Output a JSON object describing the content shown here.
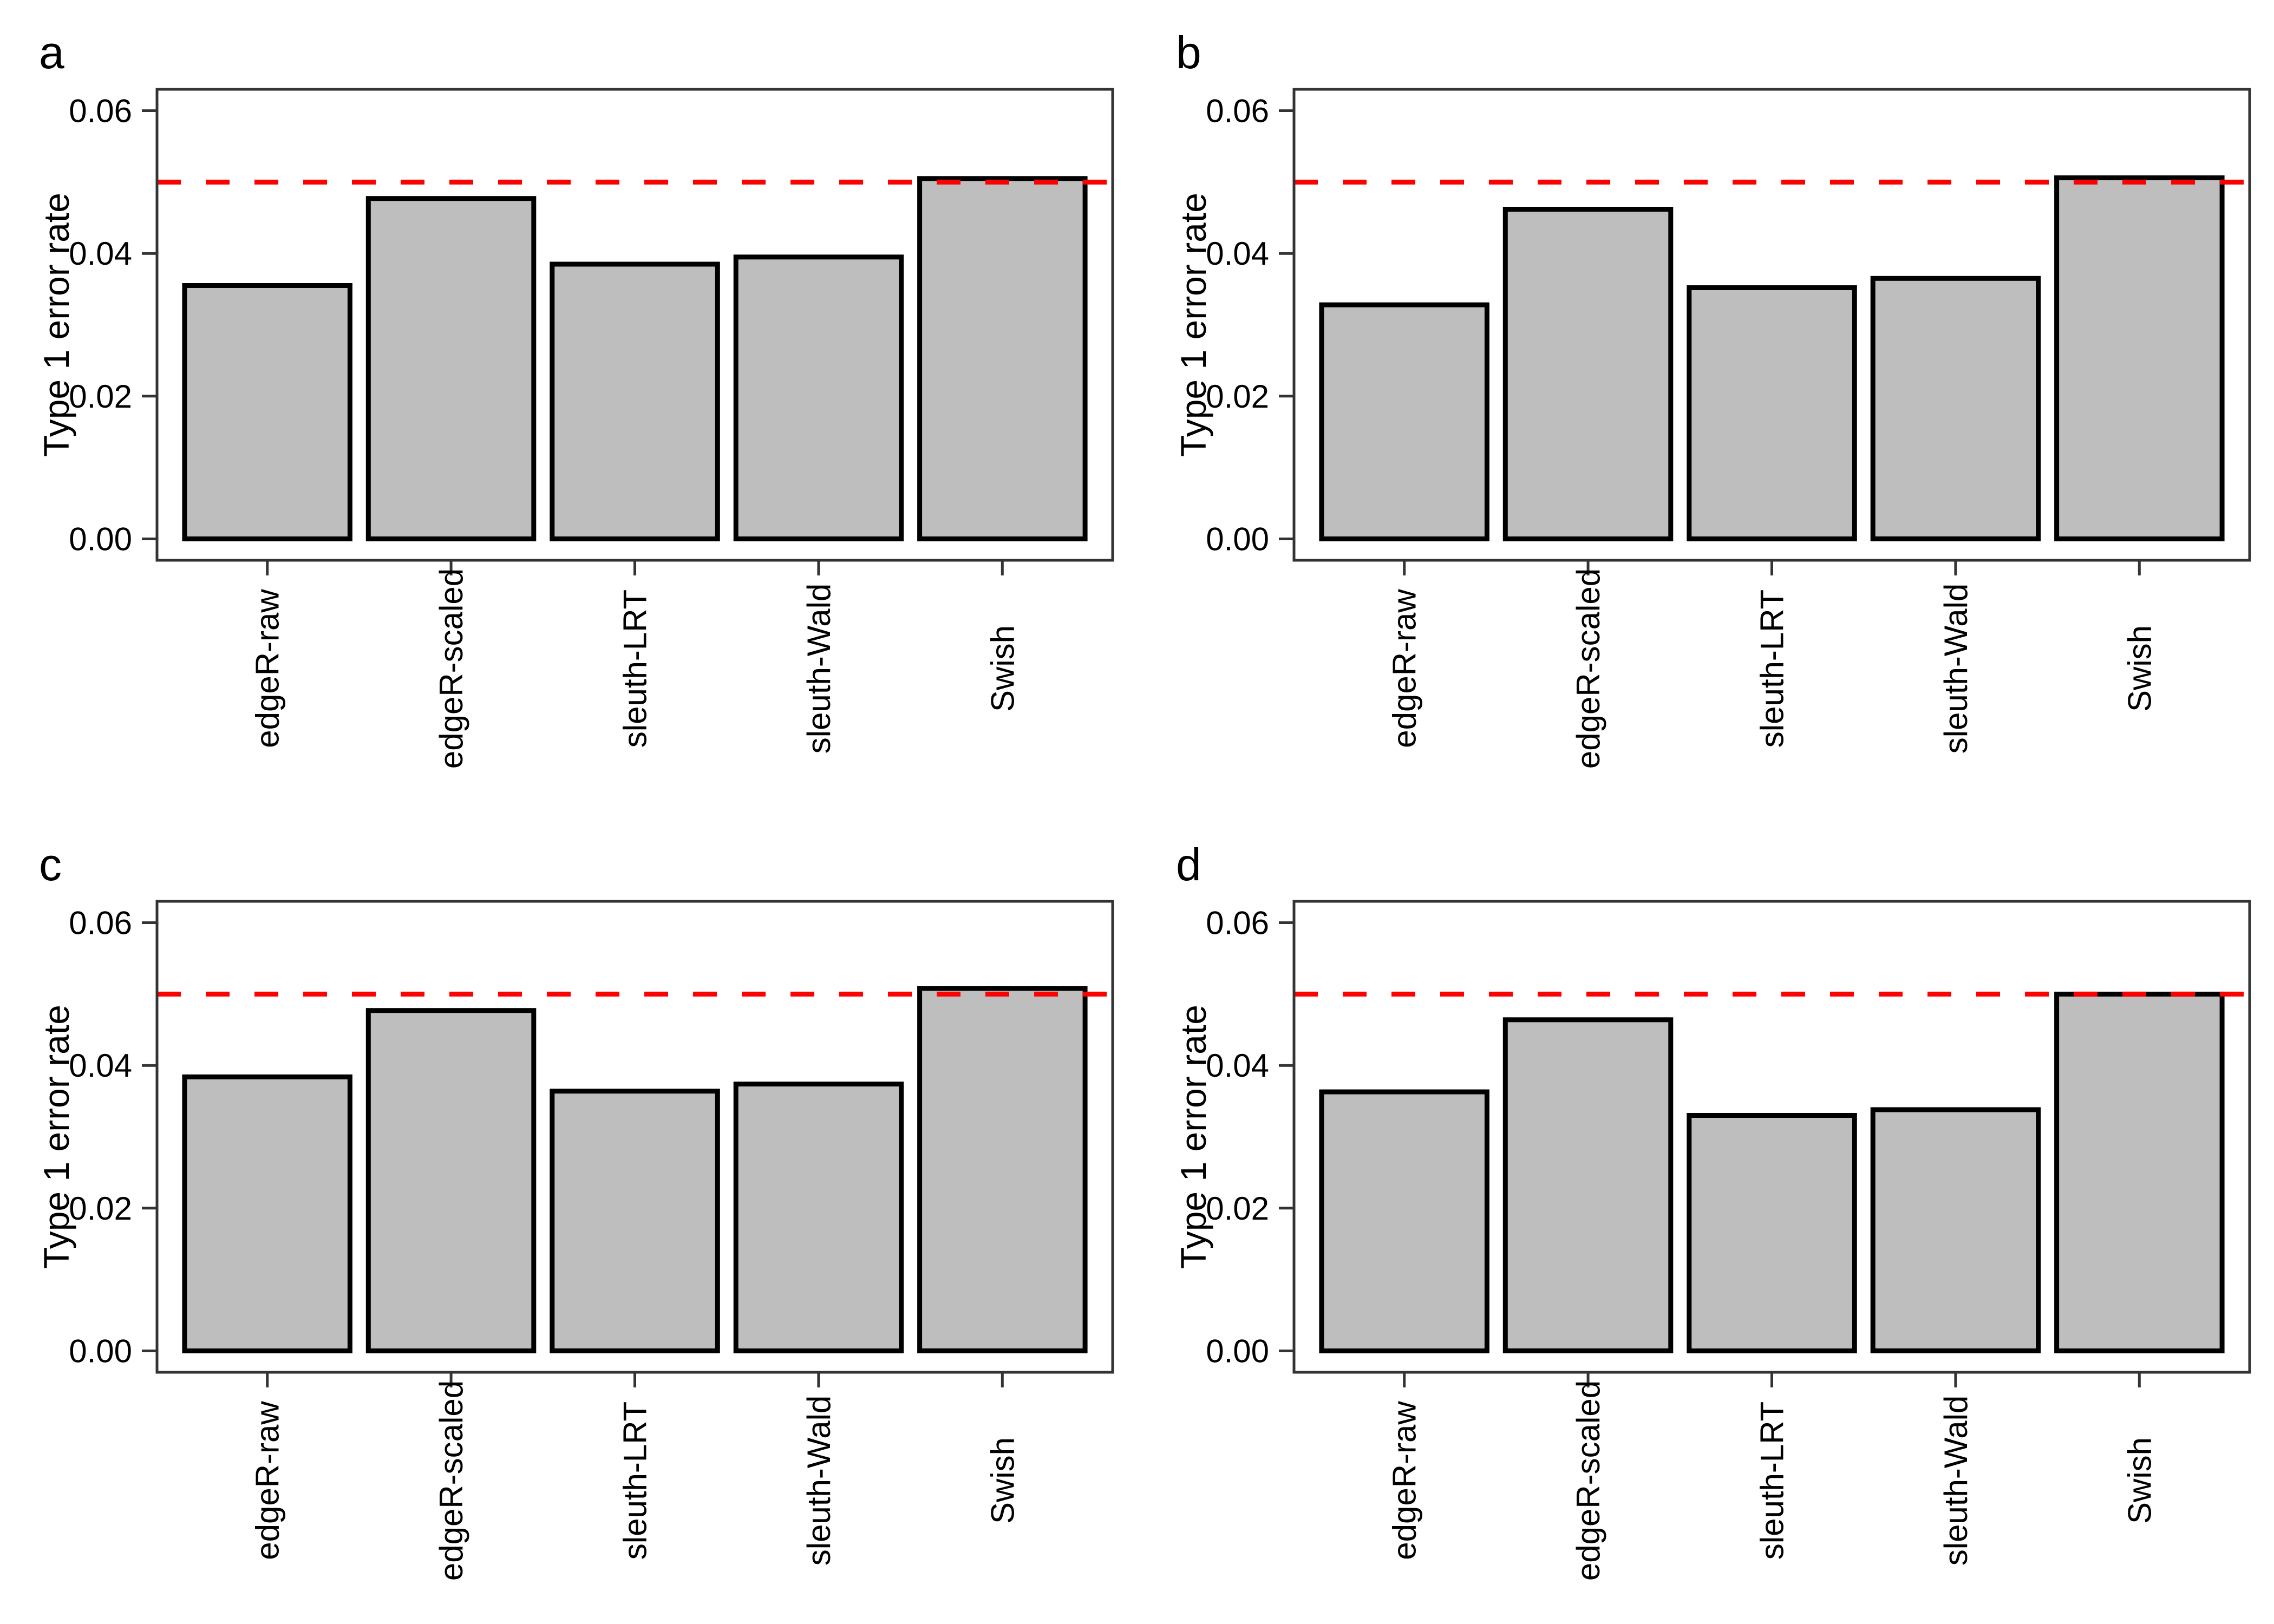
{
  "figure": {
    "background": "#ffffff",
    "bar_fill": "#bebebe",
    "bar_stroke": "#000000",
    "panel_border": "#333333",
    "tick_color": "#333333",
    "text_color": "#000000",
    "threshold_color": "#ff0000"
  },
  "chart_data": [
    {
      "type": "bar",
      "panel_label": "a",
      "ylabel": "Type 1 error rate",
      "xlabel": "",
      "categories": [
        "edgeR-raw",
        "edgeR-scaled",
        "sleuth-LRT",
        "sleuth-Wald",
        "Swish"
      ],
      "values": [
        0.0355,
        0.0477,
        0.0385,
        0.0395,
        0.0505
      ],
      "threshold": 0.05,
      "ylim": [
        0,
        0.06
      ],
      "yticks": [
        0,
        0.02,
        0.04,
        0.06
      ],
      "ytick_labels": [
        "0.00",
        "0.02",
        "0.04",
        "0.06"
      ],
      "grid": false,
      "legend": "none"
    },
    {
      "type": "bar",
      "panel_label": "b",
      "ylabel": "Type 1 error rate",
      "xlabel": "",
      "categories": [
        "edgeR-raw",
        "edgeR-scaled",
        "sleuth-LRT",
        "sleuth-Wald",
        "Swish"
      ],
      "values": [
        0.0328,
        0.0462,
        0.0352,
        0.0365,
        0.0506
      ],
      "threshold": 0.05,
      "ylim": [
        0,
        0.06
      ],
      "yticks": [
        0,
        0.02,
        0.04,
        0.06
      ],
      "ytick_labels": [
        "0.00",
        "0.02",
        "0.04",
        "0.06"
      ],
      "grid": false,
      "legend": "none"
    },
    {
      "type": "bar",
      "panel_label": "c",
      "ylabel": "Type 1 error rate",
      "xlabel": "",
      "categories": [
        "edgeR-raw",
        "edgeR-scaled",
        "sleuth-LRT",
        "sleuth-Wald",
        "Swish"
      ],
      "values": [
        0.0384,
        0.0477,
        0.0364,
        0.0374,
        0.0508
      ],
      "threshold": 0.05,
      "ylim": [
        0,
        0.06
      ],
      "yticks": [
        0,
        0.02,
        0.04,
        0.06
      ],
      "ytick_labels": [
        "0.00",
        "0.02",
        "0.04",
        "0.06"
      ],
      "grid": false,
      "legend": "none"
    },
    {
      "type": "bar",
      "panel_label": "d",
      "ylabel": "Type 1 error rate",
      "xlabel": "",
      "categories": [
        "edgeR-raw",
        "edgeR-scaled",
        "sleuth-LRT",
        "sleuth-Wald",
        "Swish"
      ],
      "values": [
        0.0363,
        0.0464,
        0.033,
        0.0338,
        0.05
      ],
      "threshold": 0.05,
      "ylim": [
        0,
        0.06
      ],
      "yticks": [
        0,
        0.02,
        0.04,
        0.06
      ],
      "ytick_labels": [
        "0.00",
        "0.02",
        "0.04",
        "0.06"
      ],
      "grid": false,
      "legend": "none"
    }
  ]
}
